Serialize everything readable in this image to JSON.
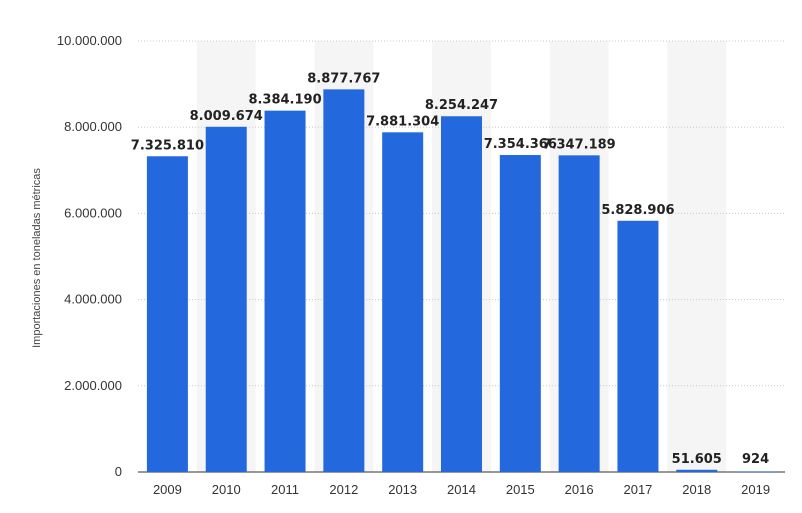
{
  "chart_data": {
    "type": "bar",
    "title": "",
    "xlabel": "",
    "ylabel": "Importaciones en toneladas métricas",
    "categories": [
      "2009",
      "2010",
      "2011",
      "2012",
      "2013",
      "2014",
      "2015",
      "2016",
      "2017",
      "2018",
      "2019"
    ],
    "values": [
      7325810,
      8009674,
      8384190,
      8877767,
      7881304,
      8254247,
      7354366,
      7347189,
      5828906,
      51605,
      924
    ],
    "value_labels": [
      "7.325.810",
      "8.009.674",
      "8.384.190",
      "8.877.767",
      "7.881.304",
      "8.254.247",
      "7.354.366",
      "7.347.189",
      "5.828.906",
      "51.605",
      "924"
    ],
    "ylim": [
      0,
      10000000
    ],
    "yticks": [
      0,
      2000000,
      4000000,
      6000000,
      8000000,
      10000000
    ],
    "ytick_labels": [
      "0",
      "2.000.000",
      "4.000.000",
      "6.000.000",
      "8.000.000",
      "10.000.000"
    ],
    "grid": true,
    "legend": "none",
    "bar_color": "#2369dd",
    "alt_band_color": "#f5f5f5",
    "grid_color": "#c8c8c8"
  }
}
